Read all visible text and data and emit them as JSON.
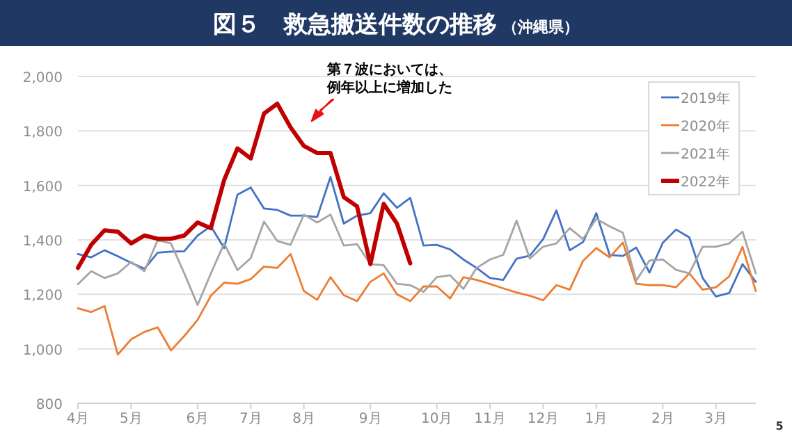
{
  "chart_data": {
    "type": "line",
    "title": "図５　救急搬送件数の推移",
    "subtitle": "（沖縄県）",
    "categories": [
      "4月",
      null,
      null,
      null,
      "5月",
      null,
      null,
      null,
      null,
      "6月",
      null,
      null,
      null,
      "7月",
      null,
      null,
      null,
      "8月",
      null,
      null,
      null,
      null,
      "9月",
      null,
      null,
      null,
      null,
      "10月",
      null,
      null,
      null,
      "11月",
      null,
      null,
      null,
      "12月",
      null,
      null,
      null,
      "1月",
      null,
      null,
      null,
      null,
      "2月",
      null,
      null,
      null,
      "3月",
      null,
      null,
      null
    ],
    "ylim": [
      800,
      2000
    ],
    "yticks": [
      {
        "value": 800,
        "label": "800"
      },
      {
        "value": 1000,
        "label": "1,000"
      },
      {
        "value": 1200,
        "label": "1,200"
      },
      {
        "value": 1400,
        "label": "1,400"
      },
      {
        "value": 1600,
        "label": "1,600"
      },
      {
        "value": 1800,
        "label": "1,800"
      },
      {
        "value": 2000,
        "label": "2,000"
      }
    ],
    "grid": "y",
    "legend": "top right",
    "marker": "none",
    "line_style": "solid",
    "annotations": [
      "第７波においては、",
      "例年以上に増加した",
      "5"
    ],
    "series": [
      {
        "name": "2019年",
        "color": "#4472c4",
        "values": [
          1348,
          1336,
          1362,
          1340,
          1316,
          1294,
          1353,
          1357,
          1358,
          1416,
          1450,
          1370,
          1566,
          1592,
          1515,
          1510,
          1489,
          1489,
          1484,
          1631,
          1460,
          1489,
          1498,
          1571,
          1518,
          1554,
          1379,
          1382,
          1365,
          1328,
          1297,
          1260,
          1253,
          1331,
          1342,
          1403,
          1508,
          1362,
          1392,
          1498,
          1345,
          1341,
          1372,
          1280,
          1389,
          1438,
          1409,
          1260,
          1192,
          1205,
          1311,
          1246
        ]
      },
      {
        "name": "2020年",
        "color": "#ed7d31",
        "values": [
          1149,
          1135,
          1157,
          979,
          1035,
          1062,
          1079,
          994,
          1047,
          1106,
          1195,
          1243,
          1239,
          1256,
          1302,
          1297,
          1348,
          1212,
          1180,
          1263,
          1197,
          1175,
          1246,
          1277,
          1200,
          1175,
          1229,
          1229,
          1185,
          1263,
          1253,
          1238,
          1222,
          1207,
          1195,
          1178,
          1234,
          1217,
          1323,
          1370,
          1336,
          1390,
          1239,
          1234,
          1234,
          1226,
          1277,
          1217,
          1226,
          1266,
          1374,
          1212
        ]
      },
      {
        "name": "2021年",
        "color": "#a5a5a5",
        "values": [
          1237,
          1285,
          1260,
          1277,
          1319,
          1285,
          1399,
          1387,
          1277,
          1161,
          1277,
          1387,
          1289,
          1333,
          1467,
          1396,
          1382,
          1493,
          1464,
          1493,
          1379,
          1384,
          1311,
          1307,
          1239,
          1234,
          1209,
          1263,
          1270,
          1220,
          1297,
          1328,
          1345,
          1471,
          1331,
          1375,
          1387,
          1443,
          1403,
          1477,
          1450,
          1426,
          1251,
          1324,
          1328,
          1290,
          1277,
          1375,
          1375,
          1387,
          1430,
          1277
        ]
      },
      {
        "name": "2022年",
        "color": "#c00000",
        "values": [
          1297,
          1382,
          1435,
          1430,
          1387,
          1416,
          1404,
          1404,
          1416,
          1464,
          1443,
          1620,
          1736,
          1699,
          1864,
          1900,
          1813,
          1745,
          1719,
          1719,
          1557,
          1523,
          1311,
          1532,
          1460,
          1314,
          null,
          null,
          null,
          null,
          null,
          null,
          null,
          null,
          null,
          null,
          null,
          null,
          null,
          null,
          null,
          null,
          null,
          null,
          null,
          null,
          null,
          null,
          null,
          null,
          null,
          null
        ]
      }
    ]
  }
}
